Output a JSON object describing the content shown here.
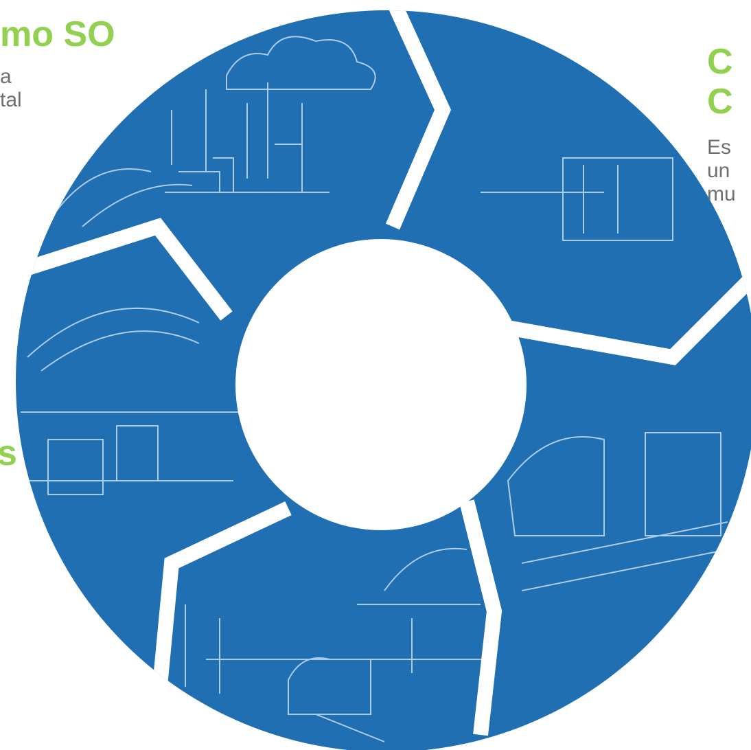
{
  "left_heading": {
    "title": "mo SO",
    "lines": [
      "a",
      "tal"
    ]
  },
  "right_heading": {
    "title_lines": [
      "C",
      "C"
    ],
    "lines": [
      "Es",
      "un",
      "mu"
    ]
  },
  "left_fragment": "s"
}
